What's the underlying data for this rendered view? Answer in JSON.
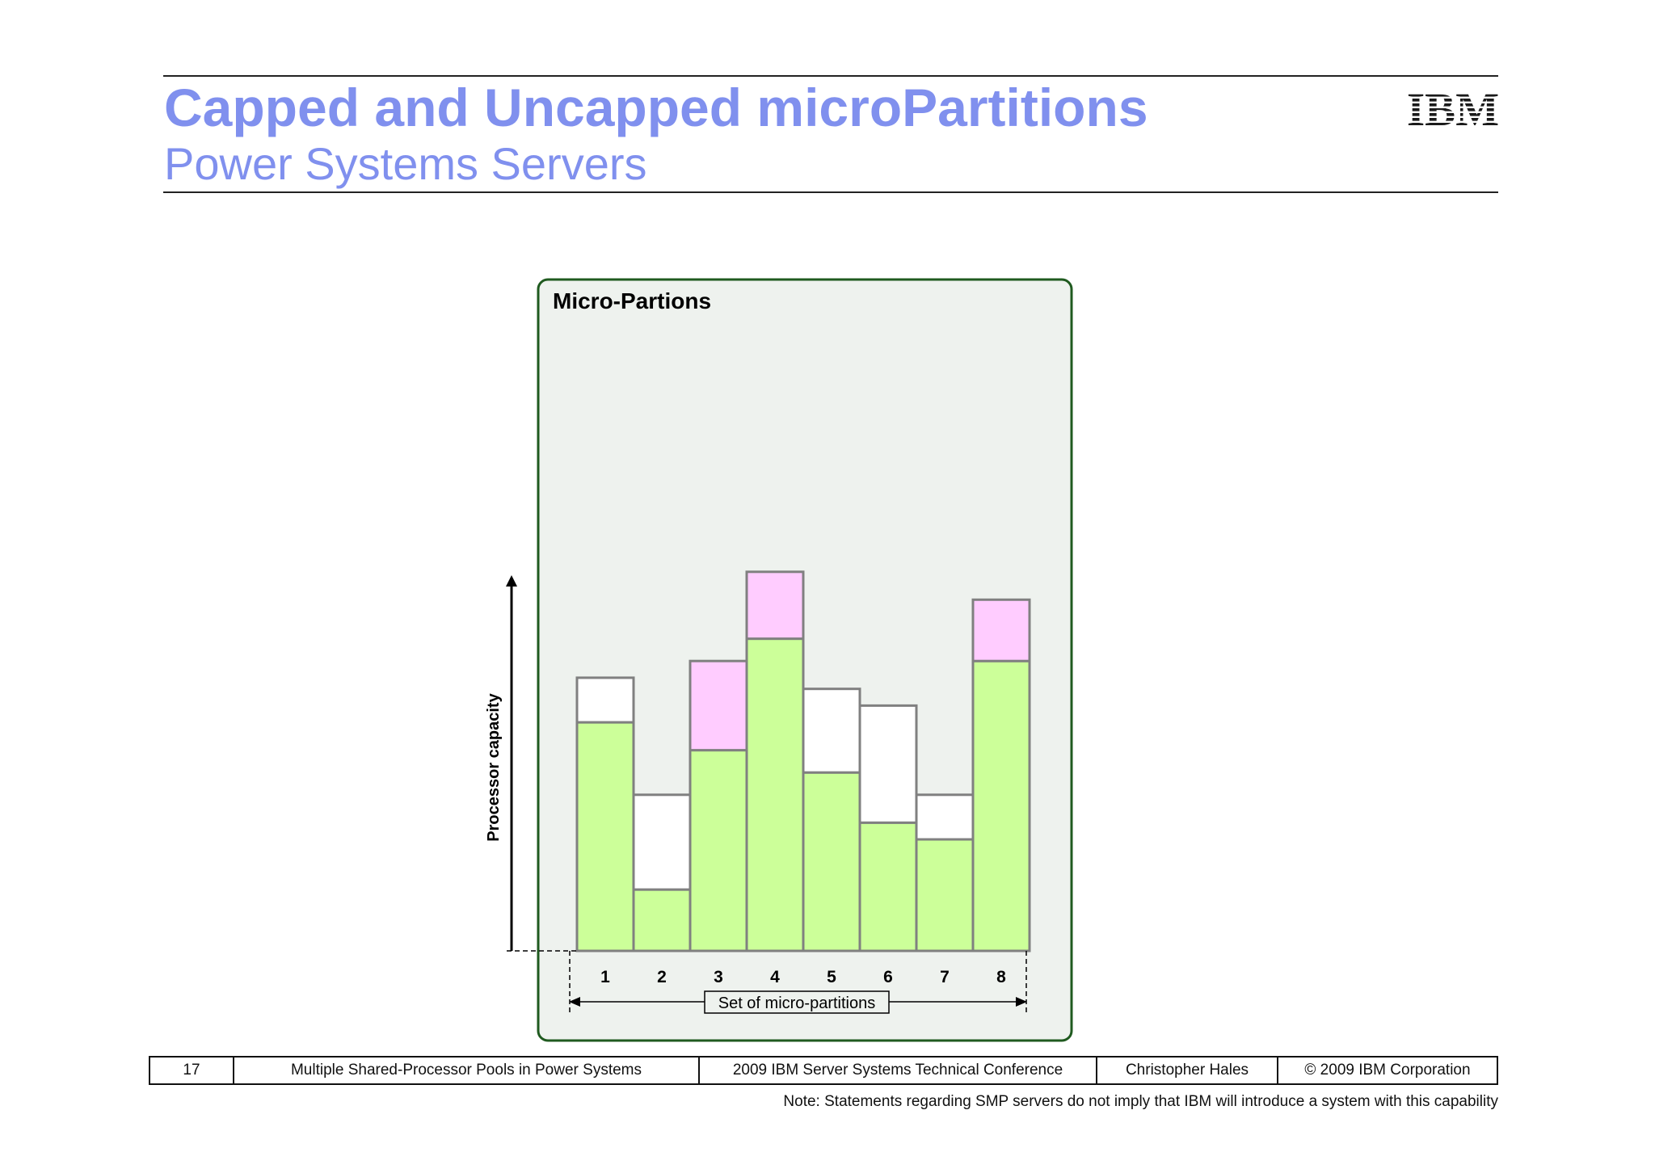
{
  "header": {
    "title": "Capped and Uncapped microPartitions",
    "subtitle": "Power Systems  Servers",
    "title_color": "#8090ee",
    "logo_text": "IBM"
  },
  "diagram": {
    "panel_title": "Micro-Partions",
    "y_axis_label": "Processor capacity",
    "x_axis_label": "Set of micro-partitions",
    "colors": {
      "used": "#ccff99",
      "unused": "#ffffff",
      "extra": "#ffccff",
      "panel_bg": "#eef2ee",
      "panel_border": "#1f5a1f",
      "bar_stroke": "#808080"
    },
    "partitions": [
      {
        "label": "1",
        "used": 41,
        "unused": 8,
        "extra": 0
      },
      {
        "label": "2",
        "used": 11,
        "unused": 17,
        "extra": 0
      },
      {
        "label": "3",
        "used": 36,
        "unused": 0,
        "extra": 16
      },
      {
        "label": "4",
        "used": 56,
        "unused": 0,
        "extra": 12
      },
      {
        "label": "5",
        "used": 32,
        "unused": 15,
        "extra": 0
      },
      {
        "label": "6",
        "used": 23,
        "unused": 21,
        "extra": 0
      },
      {
        "label": "7",
        "used": 20,
        "unused": 8,
        "extra": 0
      },
      {
        "label": "8",
        "used": 52,
        "unused": 0,
        "extra": 11
      }
    ]
  },
  "footer": {
    "page_number": "17",
    "deck_title": "Multiple Shared-Processor Pools in Power Systems",
    "event": "2009 IBM Server Systems Technical Conference",
    "author": "Christopher Hales",
    "copyright": "© 2009 IBM Corporation",
    "note": "Note: Statements regarding SMP servers do not imply that IBM will introduce a system with this capability"
  }
}
